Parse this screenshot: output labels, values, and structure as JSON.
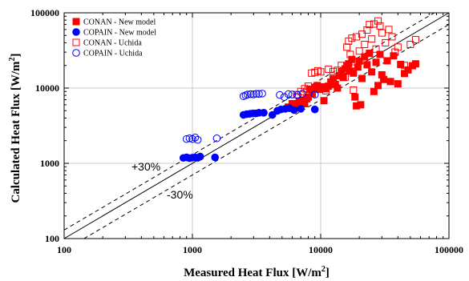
{
  "chart_data": {
    "type": "scatter",
    "x_scale": "log",
    "y_scale": "log",
    "xlim": [
      100,
      100000
    ],
    "ylim": [
      100,
      100000
    ],
    "grid": "major gridlines",
    "legend_position": "top-left",
    "xlabel": "Measured Heat Flux [W/m",
    "xlabel_sup": "2",
    "xlabel_tail": "]",
    "ylabel": "Calculated Heat Flux [W/m",
    "ylabel_sup": "2",
    "ylabel_tail": "]",
    "x_ticks": [
      100,
      1000,
      10000,
      100000
    ],
    "x_tick_labels": [
      "100",
      "1000",
      "10000",
      "100000"
    ],
    "y_ticks": [
      100,
      1000,
      10000,
      100000
    ],
    "y_tick_labels": [
      "100",
      "1000",
      "10000",
      "100000"
    ],
    "reference_lines": [
      {
        "label": "",
        "factor": 1.0,
        "style": "solid"
      },
      {
        "label": "+30%",
        "factor": 1.3,
        "style": "dashed"
      },
      {
        "label": "-30%",
        "factor": 0.7,
        "style": "dashed"
      }
    ],
    "annotations": [
      "+30%",
      "-30%"
    ],
    "series": [
      {
        "name": "CONAN - New model",
        "marker": "square-filled",
        "color": "#ff0000",
        "points": [
          [
            5600,
            5600
          ],
          [
            6000,
            6200
          ],
          [
            6400,
            5800
          ],
          [
            6800,
            6600
          ],
          [
            7200,
            6900
          ],
          [
            7500,
            6200
          ],
          [
            7800,
            7200
          ],
          [
            8000,
            7600
          ],
          [
            8200,
            9600
          ],
          [
            8600,
            8400
          ],
          [
            9000,
            10200
          ],
          [
            9400,
            10800
          ],
          [
            9800,
            9600
          ],
          [
            10200,
            10400
          ],
          [
            10600,
            6800
          ],
          [
            11000,
            9800
          ],
          [
            11500,
            10600
          ],
          [
            12000,
            12000
          ],
          [
            12500,
            13200
          ],
          [
            13000,
            11200
          ],
          [
            13500,
            10000
          ],
          [
            14000,
            14600
          ],
          [
            14500,
            16000
          ],
          [
            15000,
            13800
          ],
          [
            15500,
            18000
          ],
          [
            16000,
            19600
          ],
          [
            16500,
            21000
          ],
          [
            17000,
            16800
          ],
          [
            17500,
            24000
          ],
          [
            18000,
            15800
          ],
          [
            18500,
            7600
          ],
          [
            19000,
            5800
          ],
          [
            19500,
            19000
          ],
          [
            20000,
            22800
          ],
          [
            20500,
            6000
          ],
          [
            21000,
            13400
          ],
          [
            22000,
            26000
          ],
          [
            23000,
            20400
          ],
          [
            24000,
            29000
          ],
          [
            25000,
            16400
          ],
          [
            26000,
            9000
          ],
          [
            27000,
            22000
          ],
          [
            28000,
            10800
          ],
          [
            29000,
            28000
          ],
          [
            30000,
            15000
          ],
          [
            31000,
            13000
          ],
          [
            33000,
            23000
          ],
          [
            35000,
            12200
          ],
          [
            37000,
            26800
          ],
          [
            40000,
            11400
          ],
          [
            42000,
            20600
          ],
          [
            45000,
            15600
          ],
          [
            48000,
            17400
          ],
          [
            52000,
            19800
          ],
          [
            55000,
            21000
          ]
        ]
      },
      {
        "name": "COPAIN - New model",
        "marker": "circle-filled",
        "color": "#0000ff",
        "points": [
          [
            850,
            1180
          ],
          [
            900,
            1200
          ],
          [
            950,
            1170
          ],
          [
            1000,
            1190
          ],
          [
            1050,
            1200
          ],
          [
            1100,
            1180
          ],
          [
            1150,
            1230
          ],
          [
            1500,
            1200
          ],
          [
            2500,
            4400
          ],
          [
            2650,
            4500
          ],
          [
            2800,
            4550
          ],
          [
            2950,
            4600
          ],
          [
            3100,
            4600
          ],
          [
            3300,
            4700
          ],
          [
            3600,
            4700
          ],
          [
            4200,
            4400
          ],
          [
            4600,
            5000
          ],
          [
            4900,
            5200
          ],
          [
            5300,
            5300
          ],
          [
            5700,
            5400
          ],
          [
            6200,
            5100
          ],
          [
            7000,
            5300
          ],
          [
            9000,
            5200
          ]
        ]
      },
      {
        "name": "CONAN - Uchida",
        "marker": "square-open",
        "color": "#ff0000",
        "points": [
          [
            6500,
            8200
          ],
          [
            7000,
            9000
          ],
          [
            7500,
            9800
          ],
          [
            8000,
            10600
          ],
          [
            8500,
            15800
          ],
          [
            9000,
            16200
          ],
          [
            9500,
            17000
          ],
          [
            10000,
            16400
          ],
          [
            11000,
            9200
          ],
          [
            11500,
            17800
          ],
          [
            12500,
            16600
          ],
          [
            13500,
            17200
          ],
          [
            14500,
            20000
          ],
          [
            15500,
            14000
          ],
          [
            16000,
            35000
          ],
          [
            16500,
            42000
          ],
          [
            17000,
            28000
          ],
          [
            17500,
            46000
          ],
          [
            18000,
            9400
          ],
          [
            18500,
            22400
          ],
          [
            19000,
            48000
          ],
          [
            20000,
            31000
          ],
          [
            21000,
            52000
          ],
          [
            22000,
            38000
          ],
          [
            23000,
            59000
          ],
          [
            24000,
            70000
          ],
          [
            25000,
            45000
          ],
          [
            26000,
            71000
          ],
          [
            27000,
            33000
          ],
          [
            28000,
            78000
          ],
          [
            29000,
            67000
          ],
          [
            30000,
            54000
          ],
          [
            32000,
            40000
          ],
          [
            34000,
            60000
          ],
          [
            36000,
            48000
          ],
          [
            38000,
            30000
          ],
          [
            40000,
            35000
          ],
          [
            45000,
            20000
          ],
          [
            50000,
            38000
          ],
          [
            55000,
            44000
          ]
        ]
      },
      {
        "name": "COPAIN - Uchida",
        "marker": "circle-open",
        "color": "#0000ff",
        "points": [
          [
            900,
            2100
          ],
          [
            950,
            2150
          ],
          [
            1000,
            2100
          ],
          [
            1050,
            2200
          ],
          [
            1100,
            2050
          ],
          [
            1550,
            2150
          ],
          [
            2500,
            7800
          ],
          [
            2600,
            8000
          ],
          [
            2700,
            8200
          ],
          [
            2850,
            8300
          ],
          [
            3000,
            8250
          ],
          [
            3150,
            8400
          ],
          [
            3300,
            8350
          ],
          [
            3500,
            8450
          ],
          [
            4800,
            8100
          ],
          [
            5200,
            7600
          ],
          [
            5600,
            8300
          ],
          [
            6000,
            8200
          ],
          [
            6600,
            8100
          ],
          [
            7200,
            8400
          ],
          [
            9000,
            8200
          ]
        ]
      }
    ]
  }
}
